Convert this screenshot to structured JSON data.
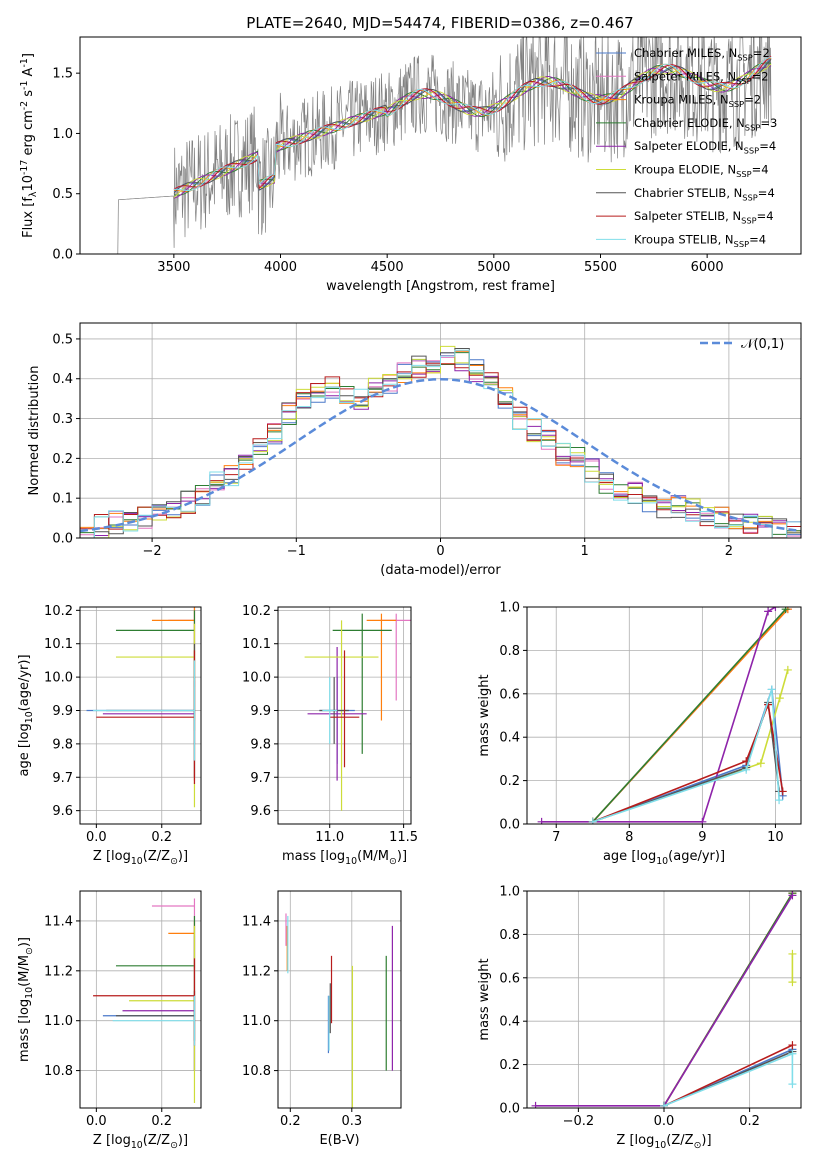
{
  "chart_data": [
    {
      "type": "line",
      "title": "PLATE=2640, MJD=54474, FIBERID=0386, z=0.467",
      "xlabel": "wavelength [Angstrom, rest frame]",
      "ylabel": "Flux [f$_\\lambda$10$^{-17}$ erg cm$^{-2}$ s$^{-1}$ A$^{-1}$]",
      "xlim": [
        3060,
        6440
      ],
      "ylim": [
        0,
        1.8
      ],
      "xticks": [
        3500,
        4000,
        4500,
        5000,
        5500,
        6000
      ],
      "yticks": [
        0.0,
        0.5,
        1.0,
        1.5
      ],
      "grid": false,
      "legend_position": "top-right",
      "data_series": {
        "name": "",
        "color": "#808080",
        "x_range": [
          3150,
          6300
        ],
        "level": [
          0.45,
          1.5
        ]
      },
      "series": [
        {
          "name": "Chabrier MILES, N$_{SSP}$=2",
          "color": "#4a78c9"
        },
        {
          "name": "Salpeter MILES, N$_{SSP}$=2",
          "color": "#e377c2"
        },
        {
          "name": "Kroupa MILES, N$_{SSP}$=2",
          "color": "#ff7f0e"
        },
        {
          "name": "Chabrier ELODIE, N$_{SSP}$=3",
          "color": "#2e7d32"
        },
        {
          "name": "Salpeter ELODIE, N$_{SSP}$=4",
          "color": "#8e24aa"
        },
        {
          "name": "Kroupa ELODIE, N$_{SSP}$=4",
          "color": "#cddc39"
        },
        {
          "name": "Chabrier STELIB, N$_{SSP}$=4",
          "color": "#555555"
        },
        {
          "name": "Salpeter STELIB, N$_{SSP}$=4",
          "color": "#b71c1c"
        },
        {
          "name": "Kroupa STELIB, N$_{SSP}$=4",
          "color": "#80deea"
        }
      ]
    },
    {
      "type": "line",
      "xlabel": "(data-model)/error",
      "ylabel": "Normed distribution",
      "xlim": [
        -2.5,
        2.5
      ],
      "ylim": [
        0,
        0.54
      ],
      "xticks": [
        -2,
        -1,
        0,
        1,
        2
      ],
      "yticks": [
        0.0,
        0.1,
        0.2,
        0.3,
        0.4,
        0.5
      ],
      "grid": true,
      "legend_position": "top-right",
      "reference_curve": {
        "name": "$\\mathcal{N}(0,1)$",
        "color": "#5b8bd9",
        "mu": 0,
        "sigma": 1
      },
      "histogram_bins": [
        -2.5,
        2.5,
        50
      ],
      "histogram_approx": [
        0.02,
        0.03,
        0.04,
        0.04,
        0.05,
        0.06,
        0.08,
        0.09,
        0.11,
        0.14,
        0.16,
        0.2,
        0.23,
        0.26,
        0.31,
        0.35,
        0.37,
        0.38,
        0.36,
        0.35,
        0.38,
        0.39,
        0.42,
        0.43,
        0.44,
        0.46,
        0.45,
        0.42,
        0.4,
        0.35,
        0.3,
        0.27,
        0.25,
        0.21,
        0.2,
        0.17,
        0.14,
        0.12,
        0.11,
        0.09,
        0.08,
        0.08,
        0.07,
        0.06,
        0.05,
        0.04,
        0.03,
        0.03,
        0.02,
        0.02
      ]
    },
    {
      "type": "scatter",
      "xlabel": "Z [log$_{10}$($Z/Z_\\odot$)]",
      "ylabel": "age  [log$_{10}$($age/yr$)]",
      "xlim": [
        -0.05,
        0.32
      ],
      "ylim": [
        9.56,
        10.21
      ],
      "xticks": [
        0.0,
        0.2
      ],
      "yticks": [
        9.6,
        9.7,
        9.8,
        9.9,
        10.0,
        10.1,
        10.2
      ],
      "grid": true,
      "points": [
        {
          "color": "#4a78c9",
          "x": 0.3,
          "xerr": [
            0.33,
            0
          ],
          "y": 9.9,
          "yerr": [
            0.1,
            0.1
          ]
        },
        {
          "color": "#e377c2",
          "x": 0.3,
          "xerr": [
            0.08,
            0
          ],
          "y": 10.17,
          "yerr": [
            0.2,
            0.04
          ]
        },
        {
          "color": "#ff7f0e",
          "x": 0.3,
          "xerr": [
            0.13,
            0
          ],
          "y": 10.17,
          "yerr": [
            0.3,
            0.04
          ]
        },
        {
          "color": "#2e7d32",
          "x": 0.3,
          "xerr": [
            0.24,
            0
          ],
          "y": 10.14,
          "yerr": [
            0.3,
            0.06
          ]
        },
        {
          "color": "#8e24aa",
          "x": 0.3,
          "xerr": [
            0.28,
            0
          ],
          "y": 9.89,
          "yerr": [
            0.2,
            0.1
          ]
        },
        {
          "color": "#cddc39",
          "x": 0.3,
          "xerr": [
            0.24,
            0
          ],
          "y": 10.06,
          "yerr": [
            0.45,
            0.1
          ]
        },
        {
          "color": "#555555",
          "x": 0.3,
          "xerr": [
            0.27,
            0
          ],
          "y": 9.9,
          "yerr": [
            0.2,
            0.2
          ]
        },
        {
          "color": "#b71c1c",
          "x": 0.3,
          "xerr": [
            0.3,
            0
          ],
          "y": 9.88,
          "yerr": [
            0.2,
            0.2
          ]
        },
        {
          "color": "#80deea",
          "x": 0.3,
          "xerr": [
            0.31,
            0
          ],
          "y": 9.9,
          "yerr": [
            0.15,
            0.15
          ]
        }
      ]
    },
    {
      "type": "scatter",
      "xlabel": "mass [log$_{10}$($M/M_\\odot$)]",
      "xlim": [
        10.65,
        11.55
      ],
      "ylim": [
        9.56,
        10.21
      ],
      "xticks": [
        11.0,
        11.5
      ],
      "yticks": [
        9.6,
        9.7,
        9.8,
        9.9,
        10.0,
        10.1,
        10.2
      ],
      "grid": true,
      "points": [
        {
          "color": "#4a78c9",
          "x": 11.05,
          "xerr": [
            0.12,
            0.12
          ],
          "y": 9.9,
          "yerr": [
            0.16,
            0.1
          ]
        },
        {
          "color": "#e377c2",
          "x": 11.45,
          "xerr": [
            0.1,
            0.1
          ],
          "y": 10.17,
          "yerr": [
            0.24,
            0.02
          ]
        },
        {
          "color": "#ff7f0e",
          "x": 11.35,
          "xerr": [
            0.1,
            0.1
          ],
          "y": 10.17,
          "yerr": [
            0.3,
            0.02
          ]
        },
        {
          "color": "#2e7d32",
          "x": 11.22,
          "xerr": [
            0.2,
            0.2
          ],
          "y": 10.14,
          "yerr": [
            0.37,
            0.05
          ]
        },
        {
          "color": "#8e24aa",
          "x": 11.05,
          "xerr": [
            0.2,
            0.2
          ],
          "y": 9.89,
          "yerr": [
            0.2,
            0.2
          ]
        },
        {
          "color": "#cddc39",
          "x": 11.08,
          "xerr": [
            0.25,
            0.25
          ],
          "y": 10.06,
          "yerr": [
            0.46,
            0.11
          ]
        },
        {
          "color": "#555555",
          "x": 11.03,
          "xerr": [
            0.1,
            0.1
          ],
          "y": 9.9,
          "yerr": [
            0.1,
            0.1
          ]
        },
        {
          "color": "#b71c1c",
          "x": 11.1,
          "xerr": [
            0.1,
            0.1
          ],
          "y": 9.88,
          "yerr": [
            0.15,
            0.2
          ]
        },
        {
          "color": "#80deea",
          "x": 11.0,
          "xerr": [
            0.05,
            0.05
          ],
          "y": 9.9,
          "yerr": [
            0.1,
            0.1
          ]
        }
      ]
    },
    {
      "type": "line",
      "xlabel": "age  [log$_{10}$($age/yr$)]",
      "ylabel": "mass weight",
      "xlim": [
        6.6,
        10.35
      ],
      "ylim": [
        0,
        1.0
      ],
      "xticks": [
        7,
        8,
        9,
        10
      ],
      "yticks": [
        0.0,
        0.2,
        0.4,
        0.6,
        0.8,
        1.0
      ],
      "grid": true,
      "series": [
        {
          "name": "",
          "color": "#4a78c9",
          "x": [
            7.5,
            9.6,
            9.95,
            10.1
          ],
          "y": [
            0.01,
            0.27,
            0.62,
            0.13
          ]
        },
        {
          "name": "",
          "color": "#e377c2",
          "x": [
            7.5,
            10.17
          ],
          "y": [
            0.01,
            0.99
          ]
        },
        {
          "name": "",
          "color": "#ff7f0e",
          "x": [
            7.5,
            10.17
          ],
          "y": [
            0.01,
            0.99
          ]
        },
        {
          "name": "",
          "color": "#2e7d32",
          "x": [
            7.5,
            10.14
          ],
          "y": [
            0.01,
            0.99
          ]
        },
        {
          "name": "",
          "color": "#8e24aa",
          "x": [
            6.8,
            9.0,
            9.9,
            10.0
          ],
          "y": [
            0.01,
            0.01,
            0.98,
            1.0
          ]
        },
        {
          "name": "",
          "color": "#cddc39",
          "x": [
            7.5,
            9.8,
            10.06,
            10.17
          ],
          "y": [
            0.01,
            0.28,
            0.58,
            0.71
          ]
        },
        {
          "name": "",
          "color": "#555555",
          "x": [
            7.5,
            9.6,
            9.9,
            10.05
          ],
          "y": [
            0.01,
            0.26,
            0.56,
            0.15
          ]
        },
        {
          "name": "",
          "color": "#b71c1c",
          "x": [
            7.5,
            9.6,
            9.9,
            10.1
          ],
          "y": [
            0.01,
            0.29,
            0.55,
            0.15
          ]
        },
        {
          "name": "",
          "color": "#80deea",
          "x": [
            7.5,
            9.6,
            9.95,
            10.05
          ],
          "y": [
            0.01,
            0.25,
            0.62,
            0.11
          ]
        }
      ]
    },
    {
      "type": "scatter",
      "xlabel": "Z [log$_{10}$($Z/Z_\\odot$)]",
      "ylabel": "mass [log$_{10}$($M/M_\\odot$)]",
      "xlim": [
        -0.05,
        0.32
      ],
      "ylim": [
        10.65,
        11.52
      ],
      "xticks": [
        0.0,
        0.2
      ],
      "yticks": [
        10.8,
        11.0,
        11.2,
        11.4
      ],
      "grid": true,
      "points": [
        {
          "color": "#4a78c9",
          "x": 0.3,
          "xerr": [
            0.28,
            0
          ],
          "y": 11.02,
          "yerr": [
            0.1,
            0.1
          ]
        },
        {
          "color": "#e377c2",
          "x": 0.3,
          "xerr": [
            0.13,
            0
          ],
          "y": 11.46,
          "yerr": [
            0.12,
            0.03
          ]
        },
        {
          "color": "#ff7f0e",
          "x": 0.3,
          "xerr": [
            0.08,
            0
          ],
          "y": 11.35,
          "yerr": [
            0.14,
            0.05
          ]
        },
        {
          "color": "#2e7d32",
          "x": 0.3,
          "xerr": [
            0.24,
            0
          ],
          "y": 11.22,
          "yerr": [
            0.42,
            0.2
          ]
        },
        {
          "color": "#8e24aa",
          "x": 0.3,
          "xerr": [
            0.22,
            0
          ],
          "y": 11.04,
          "yerr": [
            0.24,
            0.3
          ]
        },
        {
          "color": "#cddc39",
          "x": 0.3,
          "xerr": [
            0.2,
            0
          ],
          "y": 11.08,
          "yerr": [
            0.41,
            0.3
          ]
        },
        {
          "color": "#555555",
          "x": 0.3,
          "xerr": [
            0.24,
            0
          ],
          "y": 11.02,
          "yerr": [
            0.1,
            0.1
          ]
        },
        {
          "color": "#b71c1c",
          "x": 0.3,
          "xerr": [
            0.31,
            0
          ],
          "y": 11.1,
          "yerr": [
            0.2,
            0.15
          ]
        },
        {
          "color": "#80deea",
          "x": 0.3,
          "xerr": [
            0.25,
            0
          ],
          "y": 11.0,
          "yerr": [
            0.1,
            0.1
          ]
        }
      ]
    },
    {
      "type": "scatter",
      "xlabel": "E(B-V)",
      "xlim": [
        0.18,
        0.38
      ],
      "ylim": [
        10.65,
        11.52
      ],
      "xticks": [
        0.2,
        0.3
      ],
      "yticks": [
        10.8,
        11.0,
        11.2,
        11.4
      ],
      "grid": true,
      "points": [
        {
          "color": "#e377c2",
          "x": 0.193,
          "y": 11.38,
          "yerr": [
            0.08,
            0.05
          ]
        },
        {
          "color": "#ff7f0e",
          "x": 0.195,
          "y": 11.3,
          "yerr": [
            0.1,
            0.08
          ]
        },
        {
          "color": "#80deea",
          "x": 0.196,
          "y": 11.35,
          "yerr": [
            0.16,
            0.07
          ]
        },
        {
          "color": "#4a78c9",
          "x": 0.262,
          "y": 11.0,
          "yerr": [
            0.13,
            0.1
          ]
        },
        {
          "color": "#80deea",
          "x": 0.263,
          "y": 10.98,
          "yerr": [
            0.1,
            0.12
          ]
        },
        {
          "color": "#b71c1c",
          "x": 0.267,
          "y": 11.14,
          "yerr": [
            0.15,
            0.12
          ]
        },
        {
          "color": "#555555",
          "x": 0.265,
          "y": 11.05,
          "yerr": [
            0.1,
            0.1
          ]
        },
        {
          "color": "#cddc39",
          "x": 0.301,
          "y": 11.02,
          "yerr": [
            0.37,
            0.2
          ]
        },
        {
          "color": "#2e7d32",
          "x": 0.356,
          "y": 11.0,
          "yerr": [
            0.2,
            0.26
          ]
        },
        {
          "color": "#8e24aa",
          "x": 0.366,
          "y": 11.05,
          "yerr": [
            0.25,
            0.33
          ]
        }
      ]
    },
    {
      "type": "line",
      "xlabel": "Z [log$_{10}$($Z/Z_\\odot$)]",
      "ylabel": "mass weight",
      "xlim": [
        -0.32,
        0.32
      ],
      "ylim": [
        0,
        1.0
      ],
      "xticks": [
        -0.2,
        0.0,
        0.2
      ],
      "yticks": [
        0.0,
        0.2,
        0.4,
        0.6,
        0.8,
        1.0
      ],
      "grid": true,
      "series": [
        {
          "name": "",
          "color": "#4a78c9",
          "x": [
            0.0,
            0.3
          ],
          "y": [
            0.01,
            0.27
          ]
        },
        {
          "name": "",
          "color": "#e377c2",
          "x": [
            0.0,
            0.3
          ],
          "y": [
            0.01,
            0.99
          ]
        },
        {
          "name": "",
          "color": "#ff7f0e",
          "x": [
            0.0,
            0.3
          ],
          "y": [
            0.01,
            0.99
          ]
        },
        {
          "name": "",
          "color": "#2e7d32",
          "x": [
            0.0,
            0.3
          ],
          "y": [
            0.01,
            0.99
          ]
        },
        {
          "name": "",
          "color": "#8e24aa",
          "x": [
            -0.3,
            0.0,
            0.3
          ],
          "y": [
            0.01,
            0.01,
            0.98
          ]
        },
        {
          "name": "",
          "color": "#cddc39",
          "x": [
            0.3,
            0.3
          ],
          "y": [
            0.58,
            0.71
          ]
        },
        {
          "name": "",
          "color": "#555555",
          "x": [
            0.0,
            0.3
          ],
          "y": [
            0.01,
            0.26
          ]
        },
        {
          "name": "",
          "color": "#b71c1c",
          "x": [
            0.0,
            0.3
          ],
          "y": [
            0.01,
            0.29
          ]
        },
        {
          "name": "",
          "color": "#80deea",
          "x": [
            0.0,
            0.3,
            0.3
          ],
          "y": [
            0.01,
            0.25,
            0.11
          ]
        }
      ],
      "markers_at_x": 0.3,
      "marker_y": [
        0.11,
        0.15,
        0.56,
        0.62,
        0.71
      ]
    }
  ]
}
